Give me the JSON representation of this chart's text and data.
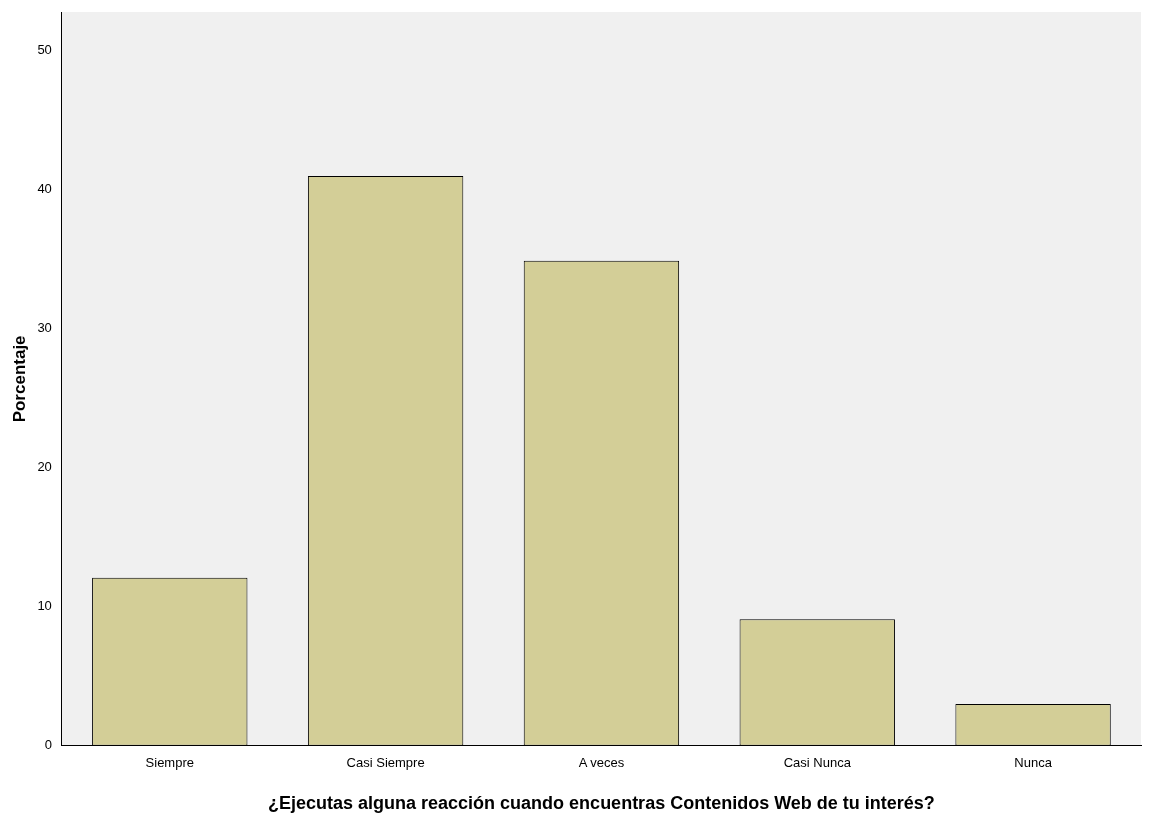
{
  "chart_data": {
    "type": "bar",
    "xlabel": "¿Ejecutas alguna reacción cuando encuentras Contenidos Web de tu interés?",
    "ylabel": "Porcentaje",
    "categories": [
      "Siempre",
      "Casi Siempre",
      "A veces",
      "Casi Nunca",
      "Nunca"
    ],
    "values": [
      12.1,
      41.0,
      34.9,
      9.1,
      3.0
    ],
    "color": "#d3ce97",
    "ylim": [
      0,
      52.8
    ],
    "yticks": [
      0,
      10,
      20,
      30,
      40,
      50
    ],
    "grid": false,
    "legend": false
  }
}
